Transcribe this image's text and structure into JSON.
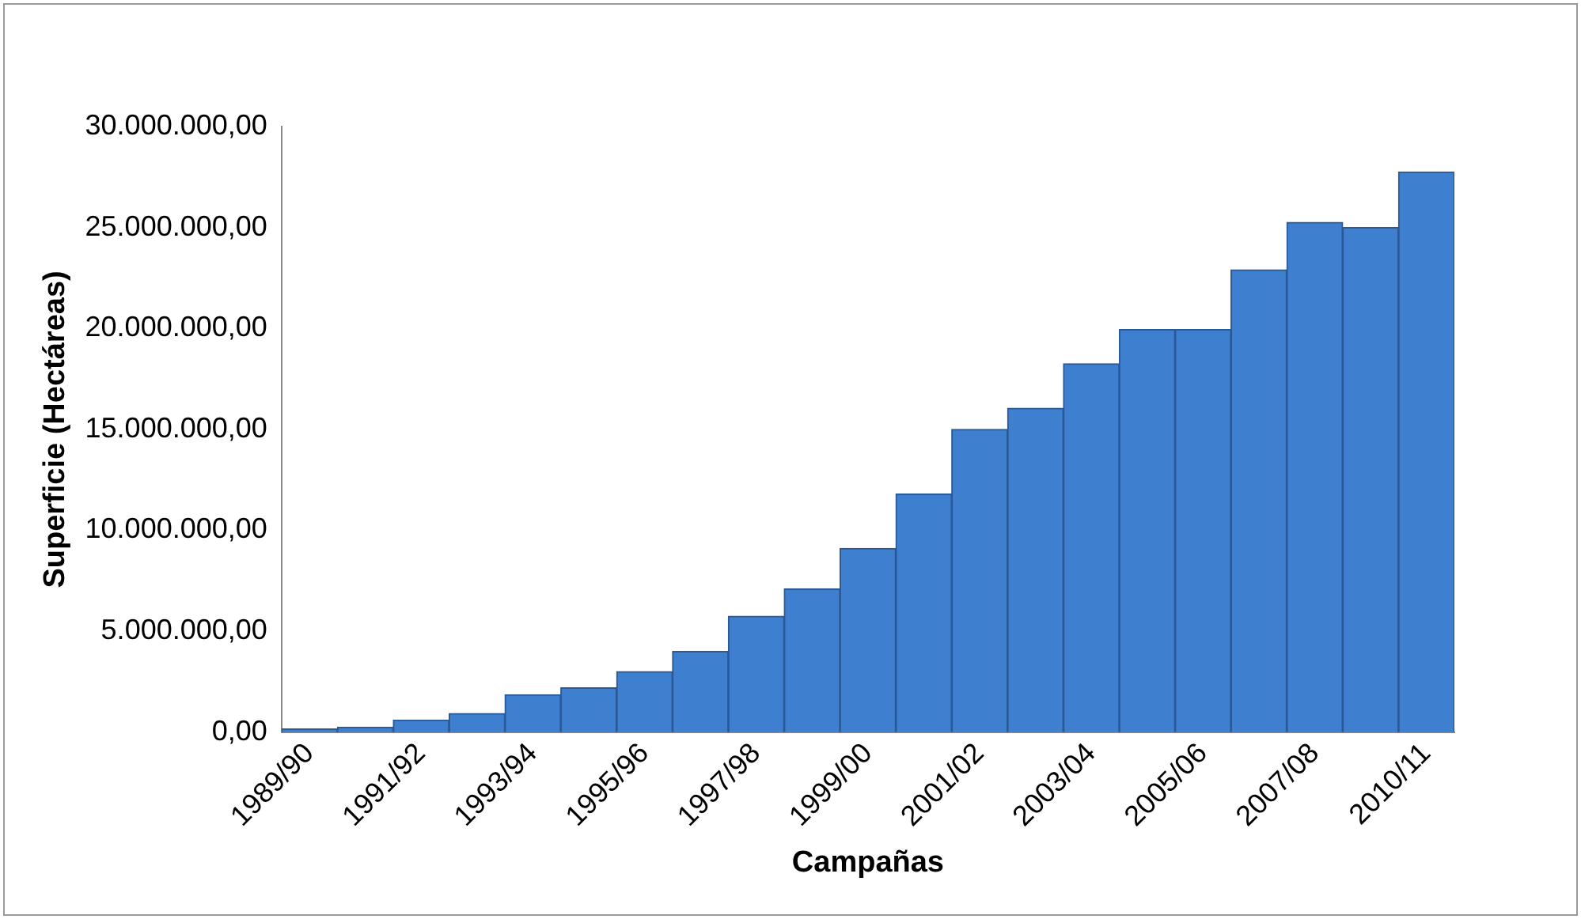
{
  "chart_data": {
    "type": "bar",
    "xlabel": "Campañas",
    "ylabel": "Superficie (Hectáreas)",
    "categories": [
      "1989/90",
      null,
      "1991/92",
      null,
      "1993/94",
      null,
      "1995/96",
      null,
      "1997/98",
      null,
      "1999/00",
      null,
      "2001/02",
      null,
      "2003/04",
      null,
      "2005/06",
      null,
      "2007/08",
      null,
      "2010/11"
    ],
    "values": [
      160000,
      250000,
      600000,
      930000,
      1860000,
      2200000,
      3000000,
      4000000,
      5750000,
      7100000,
      9100000,
      11800000,
      15000000,
      16050000,
      18250000,
      19950000,
      19950000,
      22900000,
      25250000,
      25000000,
      27750000
    ],
    "color": "#3f7fcf",
    "ylim": [
      0,
      30000000
    ],
    "yticks": [
      {
        "value": 0,
        "label": "0,00"
      },
      {
        "value": 5000000,
        "label": "5.000.000,00"
      },
      {
        "value": 10000000,
        "label": "10.000.000,00"
      },
      {
        "value": 15000000,
        "label": "15.000.000,00"
      },
      {
        "value": 20000000,
        "label": "20.000.000,00"
      },
      {
        "value": 25000000,
        "label": "25.000.000,00"
      },
      {
        "value": 30000000,
        "label": "30.000.000,00"
      }
    ],
    "grid": false,
    "legend": false
  }
}
